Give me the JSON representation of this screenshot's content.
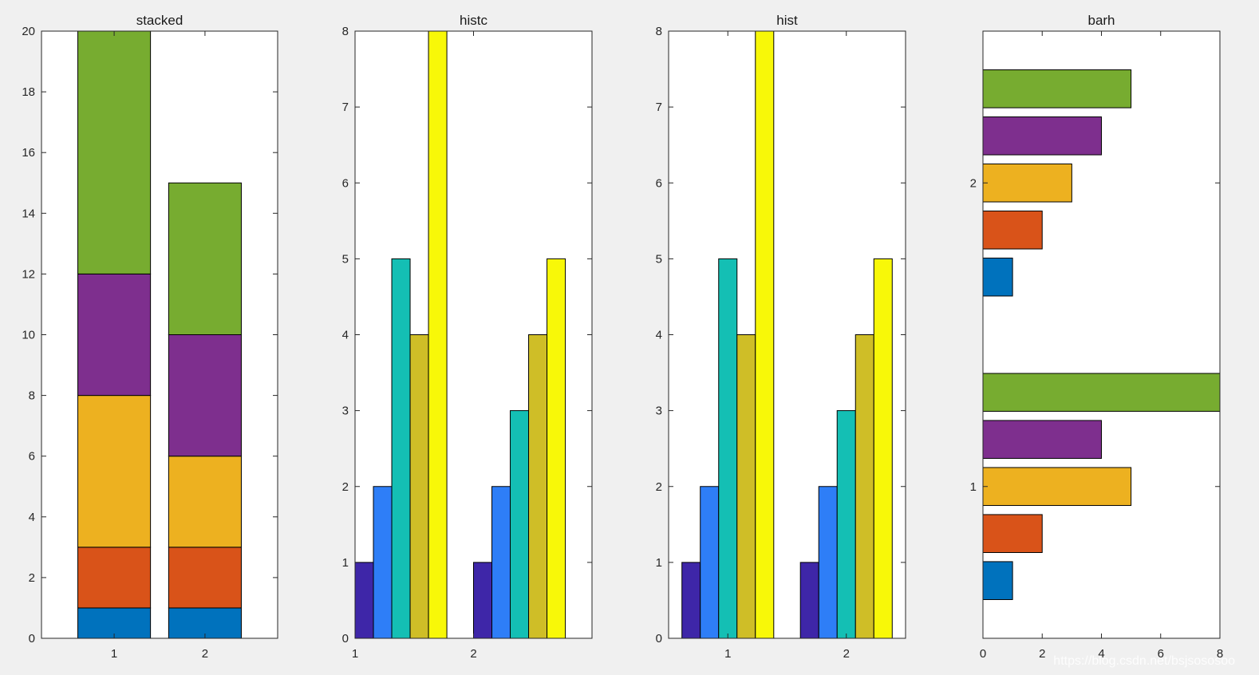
{
  "colors": {
    "stack": [
      "#0072bd",
      "#d95319",
      "#edb120",
      "#7e2f8e",
      "#77ac30"
    ],
    "parula": [
      "#3e26a8",
      "#2e7ef7",
      "#14bfb4",
      "#cfbe27",
      "#f8f808"
    ],
    "figure_bg": "#f0f0f0",
    "axes_bg": "#ffffff"
  },
  "watermark": "https://blog.csdn.net/bsjsososoo",
  "chart_data": [
    {
      "type": "bar",
      "mode": "stacked",
      "title": "stacked",
      "categories": [
        "1",
        "2"
      ],
      "series": [
        {
          "values": [
            1,
            1
          ]
        },
        {
          "values": [
            2,
            2
          ]
        },
        {
          "values": [
            5,
            3
          ]
        },
        {
          "values": [
            4,
            4
          ]
        },
        {
          "values": [
            8,
            5
          ]
        }
      ],
      "xlim": [
        0.2,
        2.8
      ],
      "ylim": [
        0,
        20
      ],
      "yticks": [
        0,
        2,
        4,
        6,
        8,
        10,
        12,
        14,
        16,
        18,
        20
      ],
      "grid": false
    },
    {
      "type": "bar",
      "mode": "grouped",
      "title": "histc",
      "categories": [
        "1",
        "2"
      ],
      "series": [
        {
          "values": [
            1,
            1
          ]
        },
        {
          "values": [
            2,
            2
          ]
        },
        {
          "values": [
            5,
            3
          ]
        },
        {
          "values": [
            4,
            4
          ]
        },
        {
          "values": [
            8,
            5
          ]
        }
      ],
      "xlim": [
        1,
        3
      ],
      "xticks": [
        1,
        2
      ],
      "ylim": [
        0,
        8
      ],
      "yticks": [
        0,
        1,
        2,
        3,
        4,
        5,
        6,
        7,
        8
      ],
      "grid": false
    },
    {
      "type": "bar",
      "mode": "grouped",
      "title": "hist",
      "categories": [
        "1",
        "2"
      ],
      "series": [
        {
          "values": [
            1,
            1
          ]
        },
        {
          "values": [
            2,
            2
          ]
        },
        {
          "values": [
            5,
            3
          ]
        },
        {
          "values": [
            4,
            4
          ]
        },
        {
          "values": [
            8,
            5
          ]
        }
      ],
      "xlim": [
        0.5,
        2.5
      ],
      "xticks": [
        1,
        2
      ],
      "ylim": [
        0,
        8
      ],
      "yticks": [
        0,
        1,
        2,
        3,
        4,
        5,
        6,
        7,
        8
      ],
      "grid": false
    },
    {
      "type": "bar",
      "mode": "horizontal",
      "title": "barh",
      "categories": [
        "1",
        "2"
      ],
      "series": [
        {
          "values": [
            1,
            1
          ]
        },
        {
          "values": [
            2,
            2
          ]
        },
        {
          "values": [
            5,
            3
          ]
        },
        {
          "values": [
            4,
            4
          ]
        },
        {
          "values": [
            8,
            5
          ]
        }
      ],
      "xlim": [
        0,
        8
      ],
      "xticks": [
        0,
        2,
        4,
        6,
        8
      ],
      "ylim": [
        0.5,
        2.5
      ],
      "grid": false
    }
  ]
}
